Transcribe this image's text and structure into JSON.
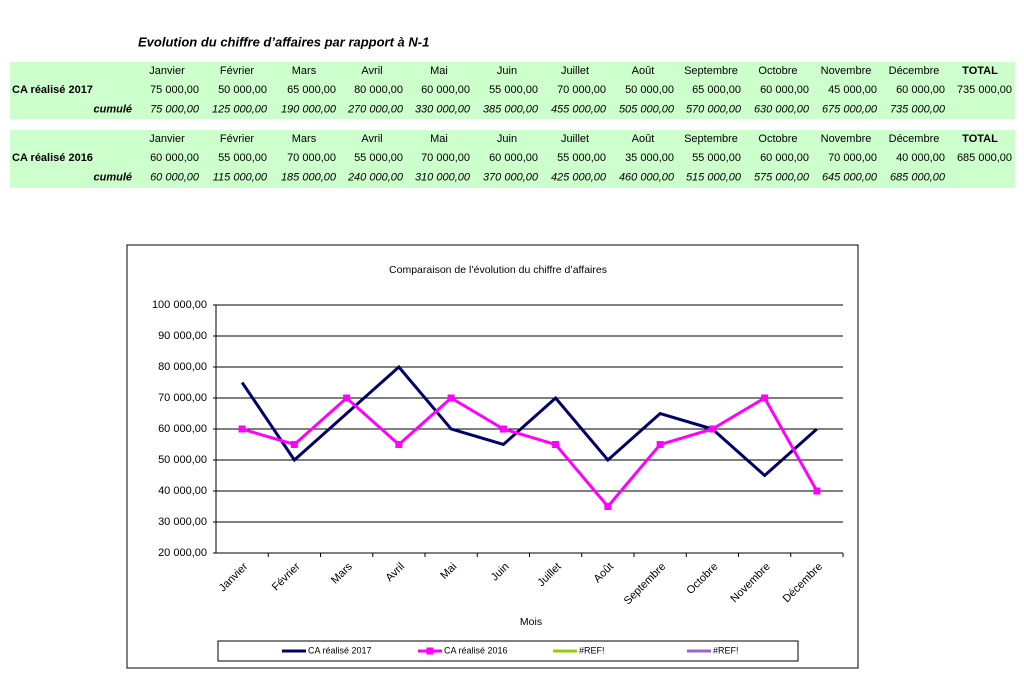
{
  "header": {
    "title": "Evolution du chiffre d’affaires par rapport à N-1"
  },
  "tables": [
    {
      "columns": [
        "Janvier",
        "Février",
        "Mars",
        "Avril",
        "Mai",
        "Juin",
        "Juillet",
        "Août",
        "Septembre",
        "Octobre",
        "Novembre",
        "Décembre",
        "TOTAL"
      ],
      "rows": [
        {
          "label": "CA réalisé 2017",
          "cells": [
            "75 000,00",
            "50 000,00",
            "65 000,00",
            "80 000,00",
            "60 000,00",
            "55 000,00",
            "70 000,00",
            "50 000,00",
            "65 000,00",
            "60 000,00",
            "45 000,00",
            "60 000,00",
            "735 000,00"
          ]
        },
        {
          "label": "cumulé",
          "cells": [
            "75 000,00",
            "125 000,00",
            "190 000,00",
            "270 000,00",
            "330 000,00",
            "385 000,00",
            "455 000,00",
            "505 000,00",
            "570 000,00",
            "630 000,00",
            "675 000,00",
            "735 000,00"
          ]
        }
      ]
    },
    {
      "columns": [
        "Janvier",
        "Février",
        "Mars",
        "Avril",
        "Mai",
        "Juin",
        "Juillet",
        "Août",
        "Septembre",
        "Octobre",
        "Novembre",
        "Décembre",
        "TOTAL"
      ],
      "rows": [
        {
          "label": "CA réalisé 2016",
          "cells": [
            "60 000,00",
            "55 000,00",
            "70 000,00",
            "55 000,00",
            "70 000,00",
            "60 000,00",
            "55 000,00",
            "35 000,00",
            "55 000,00",
            "60 000,00",
            "70 000,00",
            "40 000,00",
            "685 000,00"
          ]
        },
        {
          "label": "cumulé",
          "cells": [
            "60 000,00",
            "115 000,00",
            "185 000,00",
            "240 000,00",
            "310 000,00",
            "370 000,00",
            "425 000,00",
            "460 000,00",
            "515 000,00",
            "575 000,00",
            "645 000,00",
            "685 000,00"
          ]
        }
      ]
    }
  ],
  "chart_data": {
    "type": "line",
    "title": "Comparaison de l’évolution du chiffre d’affaires",
    "x_label": "Mois",
    "categories": [
      "Janvier",
      "Février",
      "Mars",
      "Avril",
      "Mai",
      "Juin",
      "Juillet",
      "Août",
      "Septembre",
      "Octobre",
      "Novembre",
      "Décembre"
    ],
    "series": [
      {
        "name": "CA réalisé 2017",
        "color": "#000066",
        "marker": "none",
        "values": [
          75000,
          50000,
          65000,
          80000,
          60000,
          55000,
          70000,
          50000,
          65000,
          60000,
          45000,
          60000
        ]
      },
      {
        "name": "CA réalisé 2016",
        "color": "#ff00ff",
        "marker": "square",
        "values": [
          60000,
          55000,
          70000,
          55000,
          70000,
          60000,
          55000,
          35000,
          55000,
          60000,
          70000,
          40000
        ]
      },
      {
        "name": "#REF!",
        "color": "#99cc00",
        "marker": "none",
        "values": [
          null,
          null,
          null,
          null,
          null,
          null,
          null,
          null,
          null,
          null,
          null,
          null
        ]
      },
      {
        "name": "#REF!",
        "color": "#9966cc",
        "marker": "none",
        "values": [
          null,
          null,
          null,
          null,
          null,
          null,
          null,
          null,
          null,
          null,
          null,
          null
        ]
      }
    ],
    "ylim": [
      20000,
      100000
    ],
    "yticks": [
      {
        "value": 20000,
        "label": "20 000,00"
      },
      {
        "value": 30000,
        "label": "30 000,00"
      },
      {
        "value": 40000,
        "label": "40 000,00"
      },
      {
        "value": 50000,
        "label": "50 000,00"
      },
      {
        "value": 60000,
        "label": "60 000,00"
      },
      {
        "value": 70000,
        "label": "70 000,00"
      },
      {
        "value": 80000,
        "label": "80 000,00"
      },
      {
        "value": 90000,
        "label": "90 000,00"
      },
      {
        "value": 100000,
        "label": "100 000,00"
      }
    ],
    "grid": true,
    "legend": "bottom"
  }
}
